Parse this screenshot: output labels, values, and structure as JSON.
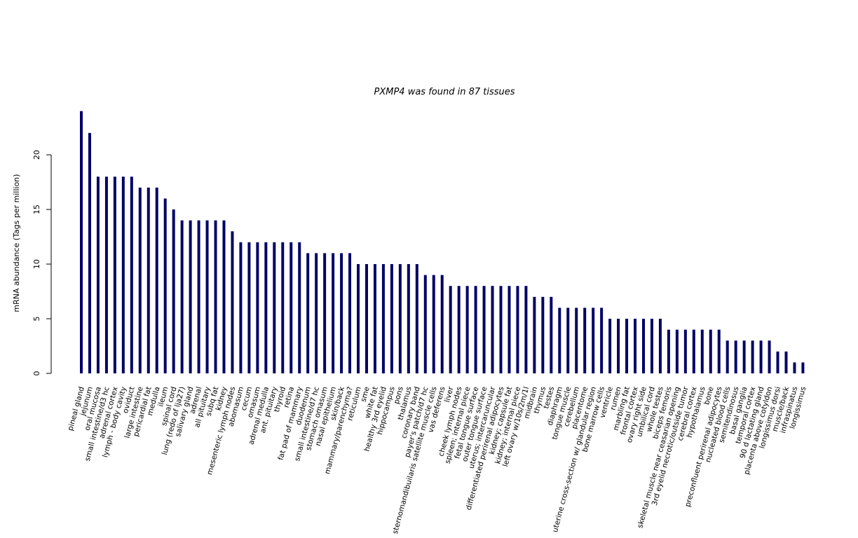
{
  "chart_data": {
    "type": "bar",
    "title": "PXMP4  was found in  87  tissues",
    "ylabel": "mRNA abundance (Tags per million)",
    "xlabel": "",
    "ylim": [
      0,
      24
    ],
    "yticks": [
      0,
      5,
      10,
      15,
      20
    ],
    "bar_color": "#000066",
    "grid": false,
    "categories": [
      "pineal gland",
      "jejunum",
      "oral mucosa",
      "small intestine/d3 hc",
      "adrenal cortex",
      "lymph - body cavity",
      "oviduct",
      "large intestine",
      "pericardial fat",
      "medulla",
      "ileum",
      "spinal cord",
      "lung (redo of lja27)",
      "salivary gland",
      "adrenal",
      "all pituitary",
      "subq fat",
      "kidney",
      "mesenteric lymph nodes",
      "abomasum",
      "cecum",
      "omasum",
      "adrenal medulla",
      "ant. pituitary",
      "thyroid",
      "retina",
      "fat pad of mammary",
      "duodenum",
      "small intestine/d7 hc",
      "stomach omasum",
      "nasal epithelium",
      "skin/back",
      "mammary/parenchyma?",
      "reticulum",
      "sme",
      "white fat",
      "healthy 3rd eyelid",
      "hippocampus",
      "pons",
      "thalamus",
      "coronary band",
      "payer's patch/d7 hc",
      "sternomandibuilaris satellite muscle cells",
      "vas deferens",
      "liver",
      "cheek lymph nodes",
      "spleen; internal piece",
      "fetal tongue surface",
      "outer tongue surface",
      "uterus; intercaruncular",
      "differentiated perirenal adipocytes",
      "kidney; capsule fat",
      "kidney; internal piece",
      "left ovary w/10s/2m/1l",
      "midbrain",
      "thymus",
      "testes",
      "diaphragm",
      "tongue muscle",
      "cerebellum",
      "placentome",
      "uterine cross-section w/ glandular region",
      "bone marrow cells",
      "ventricle",
      "rumen",
      "marbling fat",
      "frontal cortex",
      "ovary right side",
      "umbilical cord",
      "whole testes",
      "biceps femoris",
      "skeletal muscle near ceasarian opening",
      "3rd eyelid necrotic/outside tumor",
      "cerebral cortex",
      "hypothalamus",
      "bone",
      "preconfluent perirenal adipocytes",
      "nucleated blood cells",
      "semitendinosus",
      "basal ganglia",
      "temporal cortex",
      "90 d lactating gland",
      "placenta above cotyldon",
      "longissimus dorsi",
      "muscle/back",
      "infraspinatus",
      "longissimus"
    ],
    "values": [
      24,
      22,
      18,
      18,
      18,
      18,
      18,
      17,
      17,
      17,
      16,
      15,
      14,
      14,
      14,
      14,
      14,
      14,
      13,
      12,
      12,
      12,
      12,
      12,
      12,
      12,
      12,
      11,
      11,
      11,
      11,
      11,
      11,
      10,
      10,
      10,
      10,
      10,
      10,
      10,
      10,
      9,
      9,
      9,
      8,
      8,
      8,
      8,
      8,
      8,
      8,
      8,
      8,
      8,
      7,
      7,
      7,
      6,
      6,
      6,
      6,
      6,
      6,
      5,
      5,
      5,
      5,
      5,
      5,
      5,
      4,
      4,
      4,
      4,
      4,
      4,
      4,
      3,
      3,
      3,
      3,
      3,
      3,
      2,
      2,
      1,
      1
    ]
  }
}
